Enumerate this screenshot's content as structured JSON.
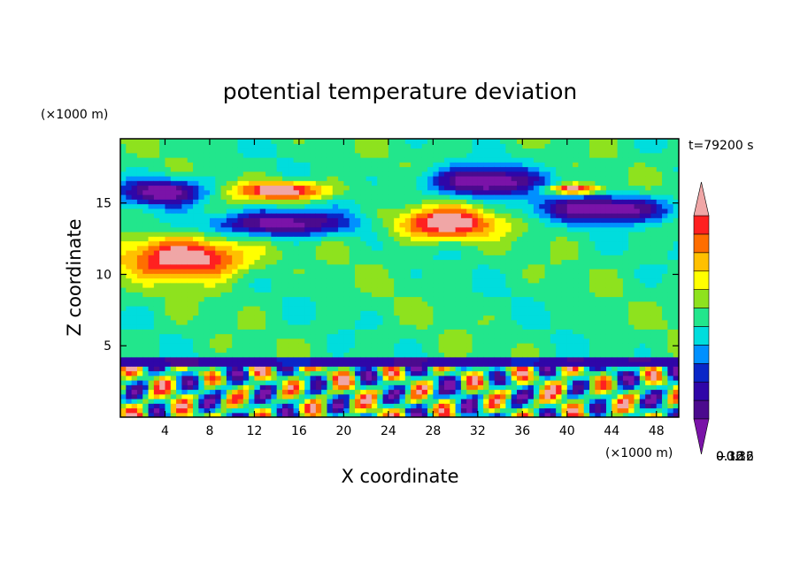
{
  "chart_data": {
    "type": "heatmap",
    "title": "potential temperature deviation",
    "xlabel": "X coordinate",
    "ylabel": "Z coordinate",
    "x_unit": "(×1000 m)",
    "y_unit": "(×1000 m)",
    "time_label": "t=79200 s",
    "xlim": [
      0,
      50
    ],
    "ylim": [
      0,
      19.5
    ],
    "x_ticks": [
      4,
      8,
      12,
      16,
      20,
      24,
      28,
      32,
      36,
      40,
      44,
      48
    ],
    "y_ticks": [
      5,
      10,
      15
    ],
    "colorbar": {
      "levels": [
        -0.48,
        -0.4,
        -0.32,
        -0.24,
        -0.16,
        -0.08,
        0,
        0.08,
        0.16,
        0.24,
        0.32,
        0.4,
        0.48
      ],
      "colors": [
        "#7a13a8",
        "#4b0a8e",
        "#2f06a8",
        "#0a26c8",
        "#0090ff",
        "#00dddd",
        "#22e68c",
        "#8ee21e",
        "#ffff00",
        "#ffc000",
        "#ff6e00",
        "#ff2020",
        "#f0a6a6"
      ],
      "tick_labels": [
        "0.32",
        "0.16",
        "0",
        "−0.16",
        "−0.32"
      ],
      "tick_values": [
        0.32,
        0.16,
        0,
        -0.16,
        -0.32
      ]
    },
    "grid": false,
    "features": [
      {
        "kind": "upper warm layer",
        "x": [
          10,
          19
        ],
        "z": [
          15.2,
          16.6
        ],
        "level": 0.44
      },
      {
        "kind": "upper warm layer",
        "x": [
          24,
          34
        ],
        "z": [
          12.4,
          14.8
        ],
        "level": 0.44
      },
      {
        "kind": "upper warm layer",
        "x": [
          38,
          43
        ],
        "z": [
          15.6,
          16.4
        ],
        "level": 0.44
      },
      {
        "kind": "upper warm band",
        "x": [
          0,
          12
        ],
        "z": [
          9.6,
          12.8
        ],
        "level": 0.44
      },
      {
        "kind": "upper cold layer",
        "x": [
          0,
          8
        ],
        "z": [
          14.8,
          16.8
        ],
        "level": -0.44
      },
      {
        "kind": "upper cold layer",
        "x": [
          8,
          21
        ],
        "z": [
          12.6,
          14.6
        ],
        "level": -0.44
      },
      {
        "kind": "upper cold layer",
        "x": [
          27,
          38
        ],
        "z": [
          15.4,
          17.6
        ],
        "level": -0.44
      },
      {
        "kind": "upper cold layer",
        "x": [
          37,
          50
        ],
        "z": [
          13.6,
          15.6
        ],
        "level": -0.44
      },
      {
        "kind": "boundary layer convection",
        "x": [
          0,
          50
        ],
        "z": [
          0,
          3.6
        ],
        "level": 0
      }
    ]
  }
}
